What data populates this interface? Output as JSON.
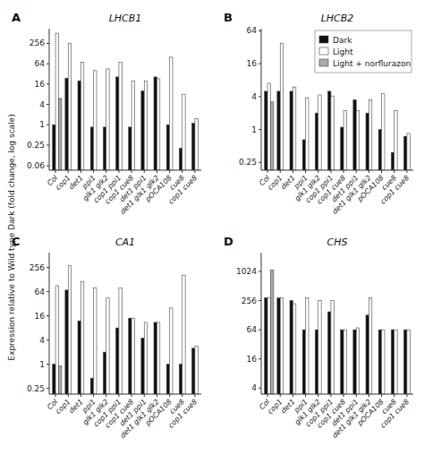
{
  "chart_data": [
    {
      "type": "bar",
      "title": "LHCB1",
      "annotations": [
        "A"
      ],
      "ylabel": "Expression relative to Wild type Dark (fold change, log scale)",
      "categories": [
        "Col",
        "cop1",
        "det1",
        "ppi1",
        "glk1 glk2",
        "cop1 ppi1",
        "cop1 cue8",
        "det1 ppi1",
        "det1 glk1 glk2",
        "pOCA108",
        "cue8",
        "cop1 cue8"
      ],
      "series": [
        {
          "name": "Dark",
          "color": "#111111",
          "values": [
            1.0,
            24,
            20,
            0.85,
            0.85,
            26,
            0.85,
            10,
            26,
            1.0,
            0.2,
            1.1
          ]
        },
        {
          "name": "Light",
          "color": "#ffffff",
          "values": [
            512,
            256,
            70,
            40,
            45,
            70,
            20,
            20,
            23,
            100,
            8,
            1.5
          ]
        },
        {
          "name": "Light + norflurazon",
          "color": "#aaaaaa",
          "values": [
            6.0,
            null,
            null,
            null,
            null,
            null,
            null,
            null,
            null,
            null,
            null,
            null
          ]
        }
      ],
      "log": "y",
      "ylim": [
        0.045,
        700
      ],
      "yticks": [
        0.06,
        0.25,
        1,
        4,
        16,
        64,
        256
      ],
      "grid": false
    },
    {
      "type": "bar",
      "title": "LHCB2",
      "annotations": [
        "B"
      ],
      "categories": [
        "Col",
        "cop1",
        "det1",
        "ppi1",
        "glk1 glk2",
        "cop1 ppi1",
        "cop1 cue8",
        "det1 ppi1",
        "det1 glk1 glk2",
        "pOCA108",
        "cue8",
        "cop1 cue8"
      ],
      "series": [
        {
          "name": "Dark",
          "color": "#111111",
          "values": [
            5.0,
            5.0,
            5.0,
            0.65,
            2.0,
            5.0,
            1.1,
            3.5,
            2.0,
            1.0,
            0.38,
            0.75
          ]
        },
        {
          "name": "Light",
          "color": "#ffffff",
          "values": [
            7.0,
            38,
            6.0,
            3.8,
            4.3,
            4.1,
            2.2,
            2.2,
            3.5,
            4.5,
            2.2,
            0.85
          ]
        },
        {
          "name": "Light + norflurazon",
          "color": "#aaaaaa",
          "values": [
            3.2,
            null,
            null,
            null,
            null,
            null,
            null,
            null,
            null,
            null,
            null,
            null
          ]
        }
      ],
      "log": "y",
      "ylim": [
        0.18,
        70
      ],
      "yticks": [
        0.25,
        1,
        4,
        16,
        64
      ],
      "grid": false,
      "legend": "upper right"
    },
    {
      "type": "bar",
      "title": "CA1",
      "annotations": [
        "C"
      ],
      "categories": [
        "Col",
        "cop1",
        "det1",
        "ppi1",
        "glk1 glk2",
        "cop1 ppi1",
        "cop1 cue8",
        "det1 ppi1",
        "det1 glk1 glk2",
        "pOCA108",
        "cue8",
        "cop1 cue8"
      ],
      "series": [
        {
          "name": "Dark",
          "color": "#111111",
          "values": [
            1.0,
            70,
            12,
            0.45,
            2.0,
            8,
            14,
            4.5,
            11,
            1.0,
            1.0,
            2.5
          ]
        },
        {
          "name": "Light",
          "color": "#ffffff",
          "values": [
            90,
            290,
            115,
            80,
            45,
            80,
            14,
            11,
            11,
            25,
            165,
            2.8
          ]
        },
        {
          "name": "Light + norflurazon",
          "color": "#aaaaaa",
          "values": [
            0.9,
            null,
            null,
            null,
            null,
            null,
            null,
            null,
            null,
            null,
            null,
            null
          ]
        }
      ],
      "log": "y",
      "ylim": [
        0.18,
        600
      ],
      "yticks": [
        0.25,
        1,
        4,
        16,
        64,
        256
      ],
      "grid": false
    },
    {
      "type": "bar",
      "title": "CHS",
      "annotations": [
        "D"
      ],
      "categories": [
        "Col",
        "cop1",
        "det1",
        "ppi1",
        "glk1 glk2",
        "cop1 ppi1",
        "cop1 cue8",
        "det1 ppi1",
        "det1 glk1 glk2",
        "pOCA108",
        "cue8",
        "cop1 cue8"
      ],
      "series": [
        {
          "name": "Dark",
          "color": "#111111",
          "values": [
            290,
            290,
            256,
            64,
            64,
            150,
            64,
            64,
            128,
            64,
            64,
            64
          ]
        },
        {
          "name": "Light",
          "color": "#ffffff",
          "values": [
            290,
            290,
            220,
            290,
            256,
            256,
            64,
            70,
            290,
            64,
            64,
            64
          ]
        },
        {
          "name": "Light + norflurazon",
          "color": "#aaaaaa",
          "values": [
            1100,
            null,
            null,
            null,
            null,
            null,
            null,
            null,
            null,
            null,
            null,
            null
          ]
        }
      ],
      "log": "y",
      "ylim": [
        3,
        2500
      ],
      "yticks": [
        4,
        16,
        64,
        256,
        1024
      ],
      "grid": false
    }
  ]
}
